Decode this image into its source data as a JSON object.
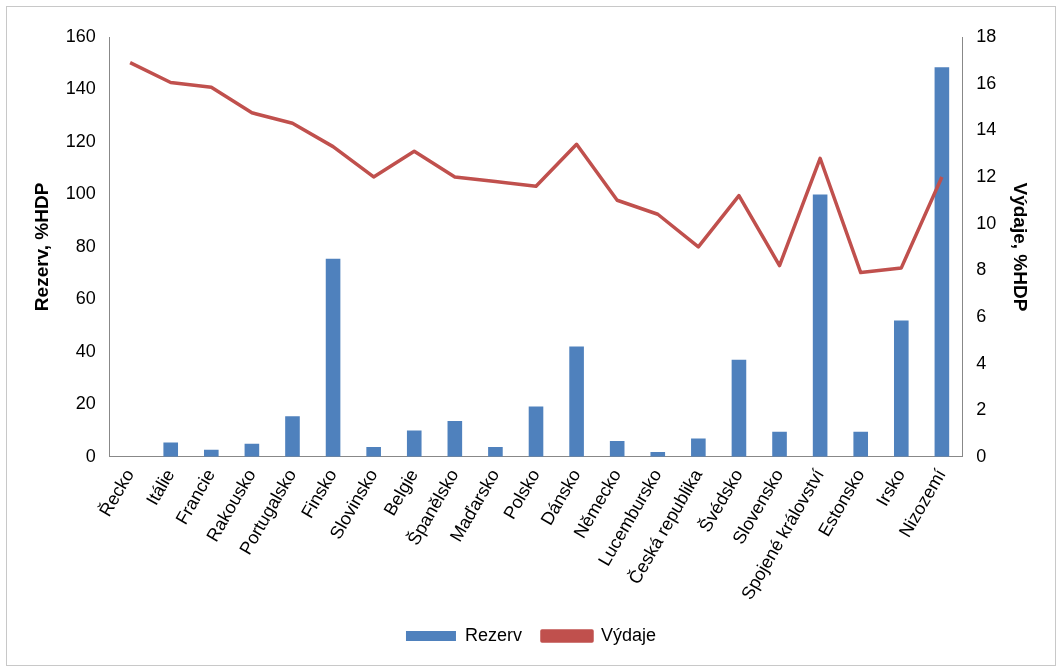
{
  "chart_data": {
    "type": "bar",
    "ylabel": "Rezerv, %HDP",
    "y2label": "Výdaje, %HDP",
    "categories": [
      "Řecko",
      "Itálie",
      "Francie",
      "Rakousko",
      "Portugalsko",
      "Finsko",
      "Slovinsko",
      "Belgie",
      "Španělsko",
      "Maďarsko",
      "Polsko",
      "Dánsko",
      "Německo",
      "Lucembursko",
      "Česká republika",
      "Švédsko",
      "Slovensko",
      "Spojené království",
      "Estonsko",
      "Irsko",
      "Nizozemí"
    ],
    "series": [
      {
        "name": "Rezerv",
        "color": "#4f81bd",
        "values": [
          0,
          5.5,
          2.7,
          5,
          15.5,
          75.5,
          3.7,
          10,
          13.7,
          3.7,
          19.2,
          42,
          6,
          1.8,
          7,
          37,
          9.6,
          100,
          9.6,
          52,
          148.5
        ]
      },
      {
        "name": "Výdaje",
        "type": "line",
        "axis": "y2",
        "color": "#c0504d",
        "values": [
          16.9,
          16.05,
          15.85,
          14.75,
          14.3,
          13.3,
          12,
          13.1,
          12,
          11.8,
          11.6,
          13.4,
          11,
          10.4,
          9,
          11.2,
          8.2,
          12.8,
          7.9,
          8.1,
          12
        ]
      }
    ],
    "ylim": [
      0,
      160
    ],
    "yticks": [
      0,
      20,
      40,
      60,
      80,
      100,
      120,
      140,
      160
    ],
    "y2lim": [
      0,
      18
    ],
    "y2ticks": [
      0,
      2,
      4,
      6,
      8,
      10,
      12,
      14,
      16,
      18
    ],
    "grid": false,
    "legend": "bottom",
    "marker": "none",
    "line_style": "solid"
  }
}
